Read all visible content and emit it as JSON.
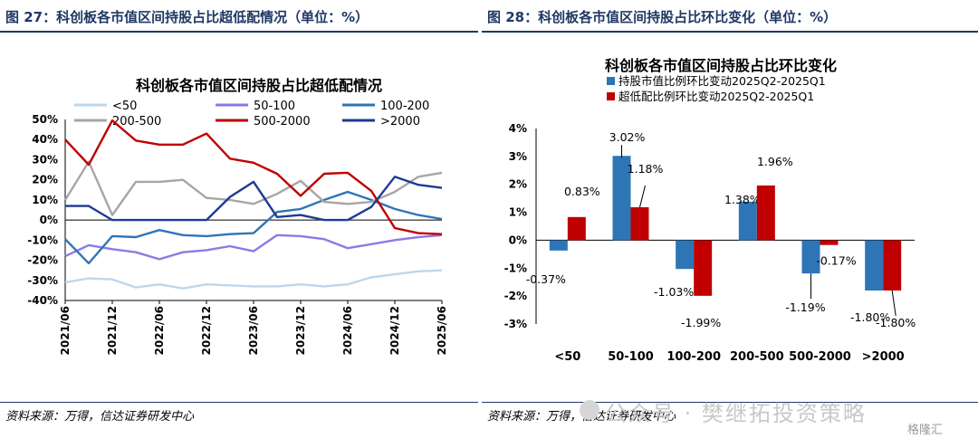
{
  "left": {
    "fig_title": "图 27：科创板各市值区间持股占比超低配情况（单位：%）",
    "source": "资料来源：万得，信达证券研发中心",
    "chart_data": {
      "type": "line",
      "title": "科创板各市值区间持股占比超低配情况",
      "x": [
        "2021/06",
        "2021/09",
        "2021/12",
        "2022/03",
        "2022/06",
        "2022/09",
        "2022/12",
        "2023/03",
        "2023/06",
        "2023/09",
        "2023/12",
        "2024/03",
        "2024/06",
        "2024/09",
        "2024/12",
        "2025/03",
        "2025/06"
      ],
      "x_tick_labels": [
        "2021/06",
        "2021/12",
        "2022/06",
        "2022/12",
        "2023/06",
        "2023/12",
        "2024/06",
        "2024/12",
        "2025/06"
      ],
      "y_tick_labels": [
        "50%",
        "40%",
        "30%",
        "20%",
        "10%",
        "0%",
        "-10%",
        "-20%",
        "-30%",
        "-40%"
      ],
      "ylim": [
        -40,
        50
      ],
      "legend_position": "top",
      "series": [
        {
          "name": "<50",
          "color": "#bdd7ee",
          "values": [
            -31,
            -29,
            -29.5,
            -33.5,
            -32,
            -34,
            -32,
            -32.5,
            -33,
            -33,
            -32,
            -33,
            -32,
            -28.5,
            -27,
            -25.5,
            -25
          ]
        },
        {
          "name": "50-100",
          "color": "#8c7ae6",
          "values": [
            -18,
            -12.5,
            -14.5,
            -16,
            -19.5,
            -16,
            -15,
            -13,
            -15.5,
            -7.5,
            -8,
            -9.5,
            -14,
            -12,
            -10,
            -8.5,
            -7.5
          ]
        },
        {
          "name": "100-200",
          "color": "#2e75b6",
          "values": [
            -9.5,
            -21.5,
            -8,
            -8.5,
            -5,
            -7.5,
            -8,
            -7,
            -6.5,
            4,
            5.5,
            10,
            14,
            10,
            5.5,
            2.5,
            0.5
          ]
        },
        {
          "name": "200-500",
          "color": "#a6a6a6",
          "values": [
            10,
            29,
            2.5,
            19,
            19,
            20,
            11,
            10,
            8,
            13,
            19.5,
            9,
            8,
            9,
            14,
            21.5,
            23.5
          ]
        },
        {
          "name": "500-2000",
          "color": "#c00000",
          "values": [
            40,
            27.5,
            49.5,
            39.5,
            37.5,
            37.5,
            43,
            30.5,
            28.5,
            23,
            12,
            23,
            23.5,
            14.5,
            -4,
            -6.5,
            -7
          ]
        },
        {
          "name": ">2000",
          "color": "#1f3a93",
          "values": [
            7,
            7,
            0,
            0,
            0,
            0,
            0,
            11.5,
            19,
            1.5,
            2.5,
            0,
            0,
            6.5,
            21.5,
            17.5,
            16
          ]
        }
      ]
    }
  },
  "right": {
    "fig_title": "图 28：科创板各市值区间持股占比环比变化（单位：%）",
    "source": "资料来源：万得，信达证券研发中心",
    "chart_data": {
      "type": "bar",
      "title": "科创板各市值区间持股占比环比变化",
      "categories": [
        "<50",
        "50-100",
        "100-200",
        "200-500",
        "500-2000",
        ">2000"
      ],
      "ylim": [
        -3,
        4
      ],
      "y_tick_labels": [
        "4%",
        "3%",
        "2%",
        "1%",
        "0%",
        "-1%",
        "-2%",
        "-3%"
      ],
      "legend_position": "top",
      "series": [
        {
          "name": "持股市值比例环比变动2025Q2-2025Q1",
          "color": "#2e75b6",
          "values": [
            -0.37,
            3.02,
            -1.03,
            1.38,
            -1.19,
            -1.8
          ],
          "labels": [
            "-0.37%",
            "3.02%",
            "-1.03%",
            "1.38%",
            "-1.19%",
            "-1.80%"
          ]
        },
        {
          "name": "超低配比例环比变动2025Q2-2025Q1",
          "color": "#c00000",
          "values": [
            0.83,
            1.18,
            -1.99,
            1.96,
            -0.17,
            -1.8
          ],
          "labels": [
            "0.83%",
            "1.18%",
            "-1.99%",
            "1.96%",
            "-0.17%",
            "-1.80%"
          ]
        }
      ]
    }
  },
  "watermark": "公众号 · 樊继拓投资策略",
  "logo": "格隆汇"
}
